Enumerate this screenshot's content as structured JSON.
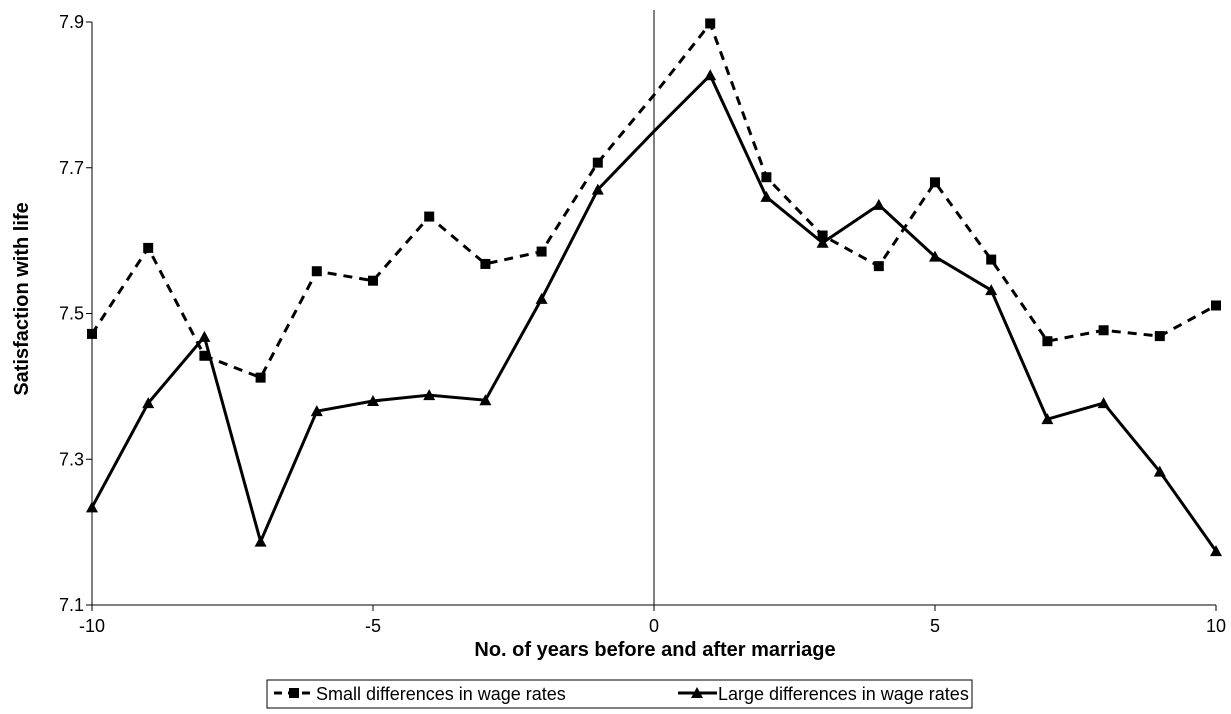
{
  "chart_data": {
    "type": "line",
    "xlabel": "No. of years before and after marriage",
    "ylabel": "Satisfaction with life",
    "xlim": [
      -10,
      10
    ],
    "ylim": [
      7.1,
      7.9
    ],
    "xticks": [
      "-10",
      "-5",
      "0",
      "5",
      "10"
    ],
    "yticks": [
      "7.1",
      "7.3",
      "7.5",
      "7.7",
      "7.9"
    ],
    "vertical_line_at_x": 0,
    "grid": false,
    "legend_position": "bottom",
    "x": [
      -10,
      -9,
      -8,
      -7,
      -6,
      -5,
      -4,
      -3,
      -2,
      -1,
      0,
      1,
      2,
      3,
      4,
      5,
      6,
      7,
      8,
      9,
      10
    ],
    "series": [
      {
        "name": "Small differences in wage rates",
        "style": "dashed",
        "marker": "square",
        "color": "#000000",
        "values": [
          7.472,
          7.59,
          7.442,
          7.412,
          7.558,
          7.545,
          7.633,
          7.568,
          7.585,
          7.707,
          7.8,
          7.898,
          7.687,
          7.607,
          7.565,
          7.68,
          7.574,
          7.462,
          7.477,
          7.469,
          7.511
        ]
      },
      {
        "name": "Large differences in wage rates",
        "style": "solid",
        "marker": "triangle",
        "color": "#000000",
        "values": [
          7.234,
          7.377,
          7.468,
          7.187,
          7.366,
          7.38,
          7.388,
          7.381,
          7.52,
          7.67,
          7.75,
          7.827,
          7.66,
          7.597,
          7.649,
          7.578,
          7.532,
          7.355,
          7.377,
          7.283,
          7.174
        ]
      }
    ]
  }
}
